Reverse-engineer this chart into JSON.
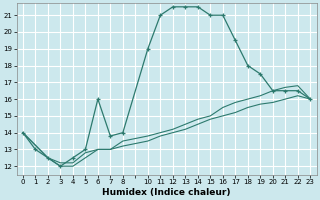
{
  "title": "",
  "xlabel": "Humidex (Indice chaleur)",
  "background_color": "#cce8ed",
  "grid_color": "#ffffff",
  "line_color": "#2d7a6e",
  "xlim": [
    -0.5,
    23.5
  ],
  "ylim": [
    11.5,
    21.7
  ],
  "yticks": [
    12,
    13,
    14,
    15,
    16,
    17,
    18,
    19,
    20,
    21
  ],
  "xtick_labels": [
    "0",
    "1",
    "2",
    "3",
    "4",
    "5",
    "6",
    "7",
    "8",
    "",
    "10",
    "11",
    "12",
    "13",
    "14",
    "15",
    "16",
    "17",
    "18",
    "19",
    "20",
    "21",
    "22",
    "23"
  ],
  "xtick_positions": [
    0,
    1,
    2,
    3,
    4,
    5,
    6,
    7,
    8,
    9,
    10,
    11,
    12,
    13,
    14,
    15,
    16,
    17,
    18,
    19,
    20,
    21,
    22,
    23
  ],
  "line1_x": [
    0,
    1,
    2,
    3,
    4,
    5,
    6,
    7,
    8,
    10,
    11,
    12,
    13,
    14,
    15,
    16,
    17,
    18,
    19,
    20,
    21,
    22,
    23
  ],
  "line1_y": [
    14.0,
    13.0,
    12.5,
    12.0,
    12.5,
    13.0,
    16.0,
    13.8,
    14.0,
    19.0,
    21.0,
    21.5,
    21.5,
    21.5,
    21.0,
    21.0,
    19.5,
    18.0,
    17.5,
    16.5,
    16.5,
    16.5,
    16.0
  ],
  "line2_x": [
    0,
    2,
    3,
    4,
    5,
    6,
    7,
    8,
    10,
    11,
    12,
    13,
    14,
    15,
    16,
    17,
    18,
    19,
    20,
    21,
    22,
    23
  ],
  "line2_y": [
    14.0,
    12.5,
    12.2,
    12.2,
    12.8,
    13.0,
    13.0,
    13.5,
    13.8,
    14.0,
    14.2,
    14.5,
    14.8,
    15.0,
    15.5,
    15.8,
    16.0,
    16.2,
    16.5,
    16.7,
    16.8,
    16.0
  ],
  "line3_x": [
    0,
    2,
    3,
    4,
    5,
    6,
    7,
    8,
    10,
    11,
    12,
    13,
    14,
    15,
    16,
    17,
    18,
    19,
    20,
    21,
    22,
    23
  ],
  "line3_y": [
    14.0,
    12.5,
    12.0,
    12.0,
    12.5,
    13.0,
    13.0,
    13.2,
    13.5,
    13.8,
    14.0,
    14.2,
    14.5,
    14.8,
    15.0,
    15.2,
    15.5,
    15.7,
    15.8,
    16.0,
    16.2,
    16.0
  ]
}
